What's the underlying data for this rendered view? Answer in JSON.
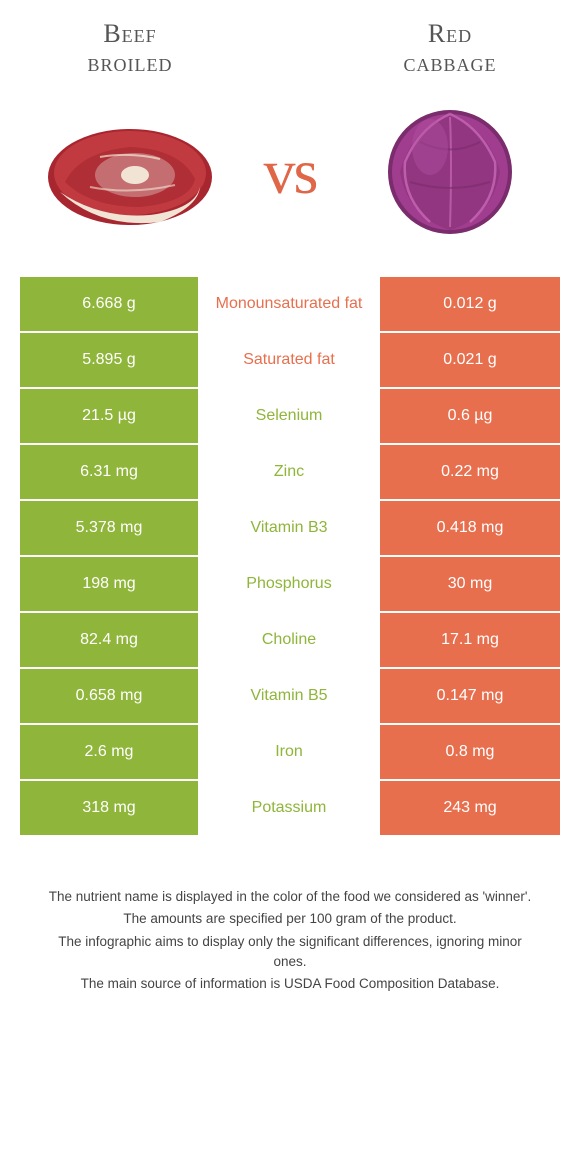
{
  "header": {
    "left_title_line1": "Beef",
    "left_title_line2": "broiled",
    "right_title_line1": "Red",
    "right_title_line2": "cabbage",
    "vs": "vs"
  },
  "colors": {
    "left_bg": "#8fb53a",
    "right_bg": "#e86f4e",
    "mid_bg": "#ffffff",
    "left_text": "#ffffff",
    "right_text": "#ffffff",
    "vs_color": "#e06648",
    "title_color": "#555555",
    "footer_color": "#444444",
    "beef_red": "#a8262f",
    "beef_fat": "#f2e4d4",
    "cabbage_purple": "#a03d8e",
    "cabbage_dark": "#7a2c6d"
  },
  "table": {
    "rows": [
      {
        "left": "6.668 g",
        "label": "Monounsaturated fat",
        "winner": "orange",
        "right": "0.012 g"
      },
      {
        "left": "5.895 g",
        "label": "Saturated fat",
        "winner": "orange",
        "right": "0.021 g"
      },
      {
        "left": "21.5 µg",
        "label": "Selenium",
        "winner": "green",
        "right": "0.6 µg"
      },
      {
        "left": "6.31 mg",
        "label": "Zinc",
        "winner": "green",
        "right": "0.22 mg"
      },
      {
        "left": "5.378 mg",
        "label": "Vitamin B3",
        "winner": "green",
        "right": "0.418 mg"
      },
      {
        "left": "198 mg",
        "label": "Phosphorus",
        "winner": "green",
        "right": "30 mg"
      },
      {
        "left": "82.4 mg",
        "label": "Choline",
        "winner": "green",
        "right": "17.1 mg"
      },
      {
        "left": "0.658 mg",
        "label": "Vitamin B5",
        "winner": "green",
        "right": "0.147 mg"
      },
      {
        "left": "2.6 mg",
        "label": "Iron",
        "winner": "green",
        "right": "0.8 mg"
      },
      {
        "left": "318 mg",
        "label": "Potassium",
        "winner": "green",
        "right": "243 mg"
      }
    ]
  },
  "footer": {
    "line1": "The nutrient name is displayed in the color of the food we considered as 'winner'.",
    "line2": "The amounts are specified per 100 gram of the product.",
    "line3": "The infographic aims to display only the significant differences, ignoring minor ones.",
    "line4": "The main source of information is USDA Food Composition Database."
  }
}
